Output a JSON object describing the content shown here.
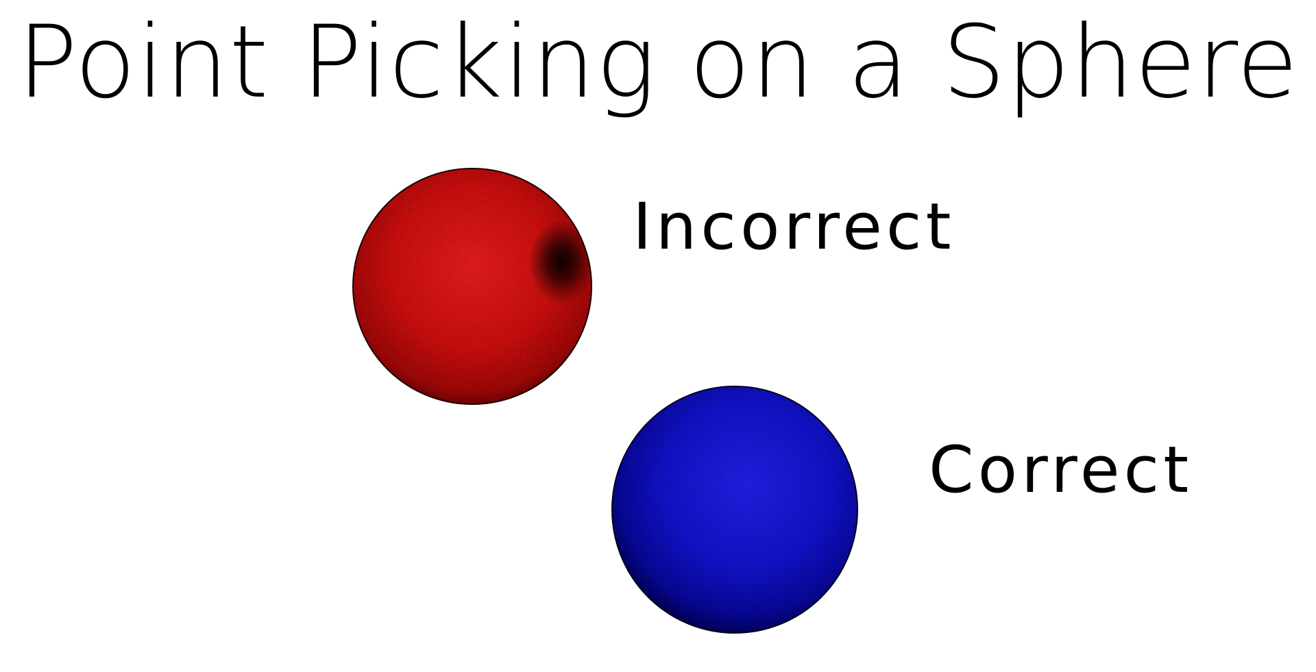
{
  "title": "Point Picking on a Sphere",
  "spheres": [
    {
      "label": "Incorrect",
      "color": "#ff1a1a",
      "distribution": "clustered-at-poles"
    },
    {
      "label": "Correct",
      "color": "#1a1aff",
      "distribution": "uniform"
    }
  ],
  "colors": {
    "background": "#ffffff",
    "text": "#000000"
  }
}
